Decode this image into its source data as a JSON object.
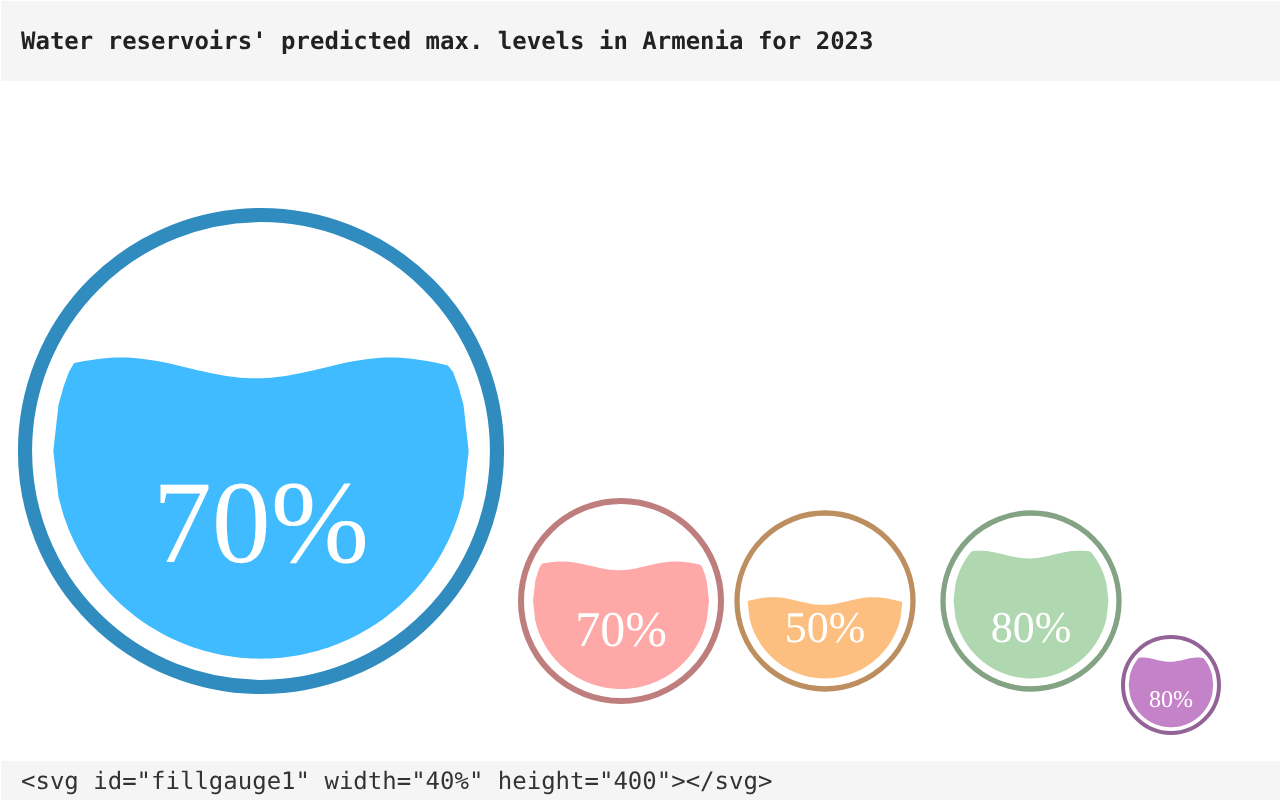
{
  "chart_data": {
    "type": "other",
    "title": "Water reservoirs' predicted max. levels in Armenia for 2023",
    "categories": [
      null,
      null,
      null,
      null,
      null
    ],
    "values": [
      70,
      70,
      50,
      80,
      80
    ],
    "value_labels": [
      "70%",
      "70%",
      "50%",
      "80%",
      "80%"
    ],
    "colors": [
      "#40bbff",
      "#ffa8a8",
      "#fdbf80",
      "#b0d8b0",
      "#c483c8"
    ],
    "annotations": [
      "<svg id=\"fillgauge1\" width=\"40%\" height=\"400\"></svg>"
    ]
  }
}
